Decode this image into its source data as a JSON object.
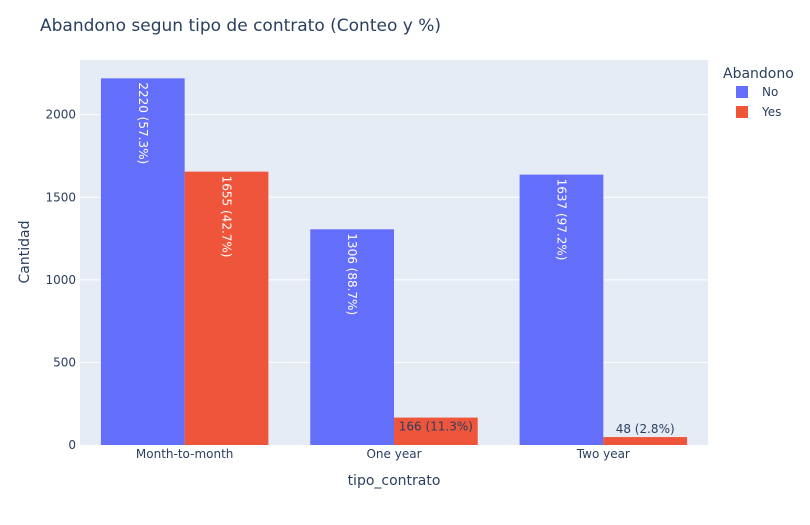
{
  "chart_data": {
    "type": "bar",
    "title": "Abandono segun tipo de contrato (Conteo y %)",
    "xlabel": "tipo_contrato",
    "ylabel": "Cantidad",
    "categories": [
      "Month-to-month",
      "One year",
      "Two year"
    ],
    "ylim": [
      0,
      2331
    ],
    "yticks": [
      0,
      500,
      1000,
      1500,
      2000
    ],
    "grid": true,
    "legend": {
      "title": "Abandono",
      "position": "top-right"
    },
    "series": [
      {
        "name": "No",
        "color": "#636efa",
        "values": [
          2220,
          1306,
          1637
        ],
        "labels": [
          "2220 (57.3%)",
          "1306 (88.7%)",
          "1637 (97.2%)"
        ]
      },
      {
        "name": "Yes",
        "color": "#ef553b",
        "values": [
          1655,
          166,
          48
        ],
        "labels": [
          "1655 (42.7%)",
          "166 (11.3%)",
          "48 (2.8%)"
        ]
      }
    ]
  }
}
